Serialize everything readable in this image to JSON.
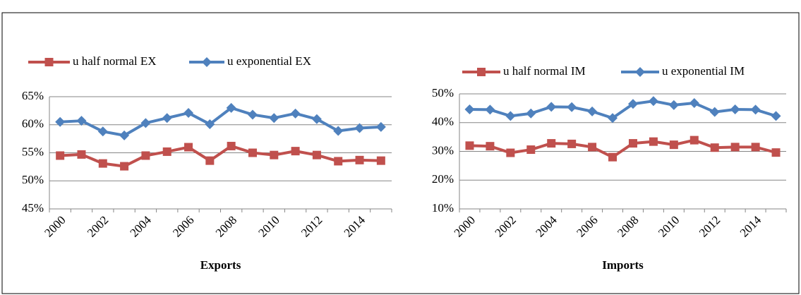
{
  "chart_data": [
    {
      "type": "line",
      "x_label": "Exports",
      "categories": [
        "2000",
        null,
        "2002",
        null,
        "2004",
        null,
        "2006",
        null,
        "2008",
        null,
        "2010",
        null,
        "2012",
        null,
        "2014",
        null
      ],
      "series": [
        {
          "name": "u half normal EX",
          "color": "#c0504d",
          "values": [
            54.5,
            54.7,
            53.1,
            52.6,
            54.5,
            55.2,
            56.0,
            53.6,
            56.2,
            55.0,
            54.6,
            55.3,
            54.6,
            53.5,
            53.7,
            53.6
          ]
        },
        {
          "name": "u exponential EX",
          "color": "#4f81bd",
          "values": [
            60.5,
            60.7,
            58.8,
            58.1,
            60.3,
            61.2,
            62.1,
            60.1,
            63.0,
            61.8,
            61.2,
            62.0,
            61.0,
            58.9,
            59.4,
            59.6
          ]
        }
      ],
      "ylim": [
        45,
        65
      ],
      "yticks": [
        {
          "value": 45,
          "label": "45%"
        },
        {
          "value": 50,
          "label": "50%"
        },
        {
          "value": 55,
          "label": "55%"
        },
        {
          "value": 60,
          "label": "60%"
        },
        {
          "value": 65,
          "label": "65%"
        }
      ],
      "grid": true,
      "legend": "top"
    },
    {
      "type": "line",
      "x_label": "Imports",
      "categories": [
        "2000",
        null,
        "2002",
        null,
        "2004",
        null,
        "2006",
        null,
        "2008",
        null,
        "2010",
        null,
        "2012",
        null,
        "2014",
        null
      ],
      "series": [
        {
          "name": "u half normal IM",
          "color": "#c0504d",
          "values": [
            32.0,
            31.8,
            29.5,
            30.6,
            32.8,
            32.6,
            31.5,
            28.0,
            32.8,
            33.4,
            32.3,
            33.9,
            31.3,
            31.5,
            31.5,
            29.6
          ]
        },
        {
          "name": "u exponential IM",
          "color": "#4f81bd",
          "values": [
            44.6,
            44.5,
            42.3,
            43.2,
            45.5,
            45.4,
            43.9,
            41.6,
            46.5,
            47.5,
            46.1,
            46.8,
            43.7,
            44.6,
            44.5,
            42.3
          ]
        }
      ],
      "ylim": [
        10,
        50
      ],
      "yticks": [
        {
          "value": 10,
          "label": "10%"
        },
        {
          "value": 20,
          "label": "20%"
        },
        {
          "value": 30,
          "label": "30%"
        },
        {
          "value": 40,
          "label": "40%"
        },
        {
          "value": 50,
          "label": "50%"
        }
      ],
      "grid": true,
      "legend": "top"
    }
  ]
}
